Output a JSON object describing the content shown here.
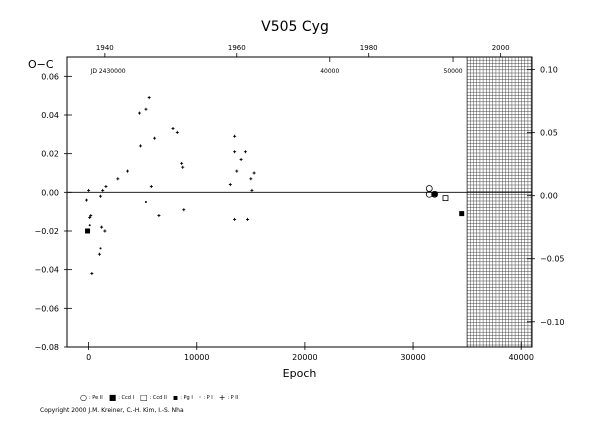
{
  "chart_data": {
    "type": "scatter",
    "title": "V505  Cyg",
    "xlabel": "Epoch",
    "ylabel": "O−C",
    "xlim": [
      -2000,
      41000
    ],
    "ylim": [
      -0.08,
      0.07
    ],
    "x_ticks": [
      0,
      10000,
      20000,
      30000,
      40000
    ],
    "x_tick_labels": [
      "0",
      "10000",
      "20000",
      "30000",
      "40000"
    ],
    "y_ticks": [
      -0.08,
      -0.06,
      -0.04,
      -0.02,
      0.0,
      0.02,
      0.04,
      0.06
    ],
    "y_tick_labels": [
      "−0.08",
      "−0.06",
      "−0.04",
      "−0.02",
      "0.00",
      "0.02",
      "0.04",
      "0.06"
    ],
    "y_first_tick_label": "0···",
    "right_axis": {
      "ticks": [
        0.1,
        0.05,
        0.0,
        -0.05,
        -0.1
      ],
      "tick_labels": [
        "0.10",
        "0.05",
        "0.00",
        "−0.05",
        "−0.10"
      ],
      "first_label_prefix": "0·"
    },
    "top_year_axis": {
      "years": [
        1940,
        1960,
        1980,
        2000
      ],
      "year_epochs": [
        1500,
        13700,
        25900,
        38100
      ]
    },
    "jd_axis": {
      "label": "JD 2430000",
      "label_epoch": 1800,
      "ticks": [
        40000,
        50000
      ],
      "tick_epochs": [
        22300,
        33700
      ]
    },
    "zero_line": 0.0,
    "future_shaded_from": 35000,
    "series": [
      {
        "symbol": "plus",
        "points": [
          [
            -200,
            -0.004
          ],
          [
            0,
            0.001
          ],
          [
            100,
            -0.013
          ],
          [
            200,
            -0.012
          ],
          [
            300,
            -0.042
          ],
          [
            1000,
            -0.032
          ],
          [
            1100,
            -0.002
          ],
          [
            1200,
            -0.018
          ],
          [
            1300,
            0.001
          ],
          [
            1500,
            -0.02
          ],
          [
            1600,
            0.003
          ],
          [
            2700,
            0.007
          ],
          [
            3600,
            0.011
          ],
          [
            4700,
            0.041
          ],
          [
            4800,
            0.024
          ],
          [
            5300,
            0.043
          ],
          [
            5600,
            0.049
          ],
          [
            5800,
            0.003
          ],
          [
            6100,
            0.028
          ],
          [
            6500,
            -0.012
          ],
          [
            7800,
            0.033
          ],
          [
            8200,
            0.031
          ],
          [
            8600,
            0.015
          ],
          [
            8700,
            0.013
          ],
          [
            8800,
            -0.009
          ],
          [
            13100,
            0.004
          ],
          [
            13500,
            0.029
          ],
          [
            13500,
            0.021
          ],
          [
            13500,
            -0.014
          ],
          [
            13700,
            0.011
          ],
          [
            14100,
            0.017
          ],
          [
            14500,
            0.021
          ],
          [
            14700,
            -0.014
          ],
          [
            15000,
            0.007
          ],
          [
            15100,
            0.001
          ],
          [
            15300,
            0.01
          ]
        ]
      },
      {
        "symbol": "dot",
        "points": [
          [
            100,
            -0.017
          ],
          [
            1100,
            -0.029
          ],
          [
            5300,
            -0.005
          ]
        ]
      },
      {
        "symbol": "filled-square",
        "points": [
          [
            -100,
            -0.02
          ],
          [
            32000,
            -0.001
          ],
          [
            34500,
            -0.011
          ]
        ]
      },
      {
        "symbol": "open-square",
        "points": [
          [
            33000,
            -0.003
          ]
        ]
      },
      {
        "symbol": "open-circle",
        "points": [
          [
            31500,
            0.002
          ],
          [
            31500,
            -0.001
          ],
          [
            32000,
            -0.001
          ]
        ]
      }
    ]
  },
  "legend": [
    {
      "symbol": "○",
      "label": ": Pe II"
    },
    {
      "symbol": "■",
      "label": ": Ccd I"
    },
    {
      "symbol": "□",
      "label": ": Ccd II"
    },
    {
      "symbol": "▪",
      "label": ": Pg I"
    },
    {
      "symbol": "·",
      "label": ": P I"
    },
    {
      "symbol": "+",
      "label": ": P II"
    }
  ],
  "copyright": "Copyright 2000 J.M. Kreiner, C.-H. Kim, I.-S. Nha"
}
